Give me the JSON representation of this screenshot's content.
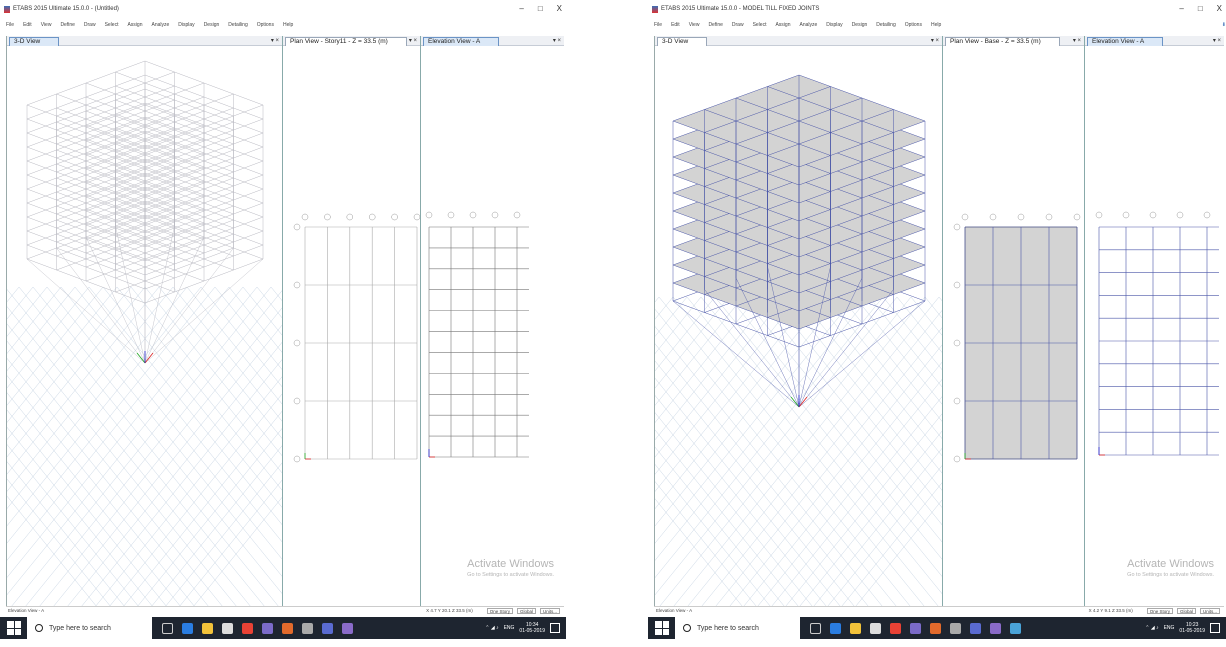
{
  "left": {
    "title": "ETABS 2015 Ultimate 15.0.0 - (Untitled)",
    "window_controls": [
      "–",
      "□",
      "X"
    ],
    "menu": [
      "File",
      "Edit",
      "View",
      "Define",
      "Draw",
      "Select",
      "Assign",
      "Analyze",
      "Display",
      "Design",
      "Detailing",
      "Options",
      "Help"
    ],
    "panes": {
      "view3d": {
        "tab": "3-D View",
        "pin": "▾ ×"
      },
      "plan": {
        "tab": "Plan View - Story11 - Z = 33.5 (m)",
        "pin": "▾ ×"
      },
      "elev": {
        "tab": "Elevation View - A",
        "pin": "▾ ×"
      }
    },
    "watermark": {
      "title": "Activate Windows",
      "subtitle": "Go to Settings to activate Windows."
    },
    "status": {
      "left": "Elevation View - A",
      "coord": "X 4.7 Y 20.1 Z 33.5 (m)",
      "story": "One Story",
      "coords": "Global",
      "units": "Units..."
    },
    "taskbar": {
      "search": "Type here to search",
      "time": "10:34",
      "date": "01-05-2019",
      "lang": "ENG"
    }
  },
  "right": {
    "title": "ETABS 2015 Ultimate 15.0.0 - MODEL TILL FIXED JOINTS",
    "window_controls": [
      "–",
      "□",
      "X"
    ],
    "menu": [
      "File",
      "Edit",
      "View",
      "Define",
      "Draw",
      "Select",
      "Assign",
      "Analyze",
      "Display",
      "Design",
      "Detailing",
      "Options",
      "Help"
    ],
    "panes": {
      "view3d": {
        "tab": "3-D View",
        "pin": "▾ ×"
      },
      "plan": {
        "tab": "Plan View - Base - Z = 33.5 (m)",
        "pin": "▾ ×"
      },
      "elev": {
        "tab": "Elevation View - A",
        "pin": "▾ ×"
      }
    },
    "watermark": {
      "title": "Activate Windows",
      "subtitle": "Go to Settings to activate Windows."
    },
    "status": {
      "left": "Elevation View - A",
      "coord": "X 4.2 Y 9.1 Z 33.5 (m)",
      "story": "One Story",
      "coords": "Global",
      "units": "Units..."
    },
    "taskbar": {
      "search": "Type here to search",
      "time": "10:23",
      "date": "01-05-2019",
      "lang": "ENG"
    }
  },
  "colors": {
    "frame": "#4a56a8",
    "slab": "#d3d3d3",
    "grid_ground": "#b9c9dc",
    "taskbar": "#1e2530"
  },
  "icons": [
    "app-icon",
    "download-icon",
    "pin-icon",
    "windows-start-icon",
    "search-icon",
    "task-view-icon",
    "file-explorer-icon",
    "store-icon",
    "chrome-icon",
    "etabs-icon",
    "network-icon",
    "volume-icon",
    "notification-icon"
  ]
}
